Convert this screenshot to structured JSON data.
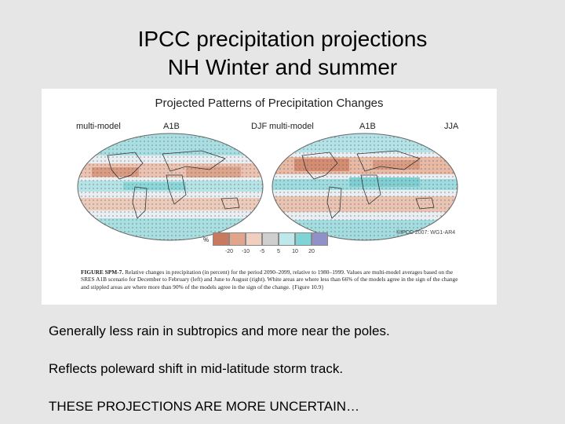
{
  "slide": {
    "title_line1": "IPCC precipitation projections",
    "title_line2": "NH Winter and summer"
  },
  "figure": {
    "title": "Projected Patterns of Precipitation Changes",
    "left_panel": {
      "model": "multi-model",
      "scenario": "A1B",
      "season": "DJF"
    },
    "right_panel": {
      "model": "multi-model",
      "scenario": "A1B",
      "season": "JJA"
    },
    "legend": {
      "unit": "%",
      "ticks": [
        "-20",
        "-10",
        "-5",
        "5",
        "10",
        "20"
      ],
      "colors": [
        "#c97a5e",
        "#e0a58a",
        "#f1cfc0",
        "#cfcfcf",
        "#bfe8ea",
        "#80d4d6",
        "#8f91c8"
      ]
    },
    "copyright": "©IPCC 2007: WG1-AR4",
    "caption_label": "FIGURE SPM-7.",
    "caption_text": "Relative changes in precipitation (in percent) for the period 2090–2099, relative to 1980–1999. Values are multi-model averages based on the SRES A1B scenario for December to February (left) and June to August (right). White areas are where less than 66% of the models agree in the sign of the change and stippled areas are where more than 90% of the models agree in the sign of the change. {Figure 10.9}"
  },
  "bullets": [
    "Generally less rain in subtropics and more near the poles.",
    "Reflects poleward shift in mid-latitude storm track.",
    "THESE PROJECTIONS ARE MORE UNCERTAIN…"
  ]
}
